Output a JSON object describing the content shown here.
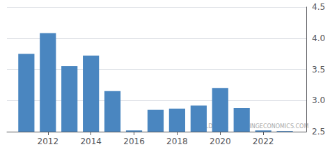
{
  "chart_data": {
    "type": "bar",
    "x": [
      2011,
      2012,
      2013,
      2014,
      2015,
      2016,
      2017,
      2018,
      2019,
      2020,
      2021,
      2022,
      2023
    ],
    "values": [
      3.75,
      4.08,
      3.55,
      3.72,
      3.15,
      2.52,
      2.85,
      2.87,
      2.92,
      3.2,
      2.88,
      2.52,
      2.51
    ],
    "color": "#4a86c0",
    "xlim": [
      2010.1,
      2024.0
    ],
    "xticks": [
      2012,
      2014,
      2016,
      2018,
      2020,
      2022
    ],
    "ylim": [
      2.5,
      4.5
    ],
    "yticks": [
      2.5,
      {
        "value": 3.0,
        "label": "3.0"
      },
      3.5,
      {
        "value": 4.0,
        "label": "4.0"
      },
      4.5
    ],
    "grid": true,
    "annotations": [
      "WORLDBANK",
      "TRADINGECONOMICS.COM"
    ]
  }
}
